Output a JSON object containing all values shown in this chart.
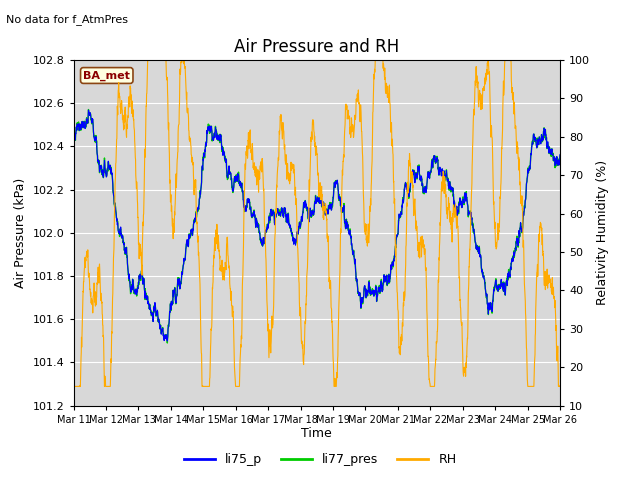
{
  "title": "Air Pressure and RH",
  "top_left_text": "No data for f_AtmPres",
  "box_label": "BA_met",
  "xlabel": "Time",
  "ylabel_left": "Air Pressure (kPa)",
  "ylabel_right": "Relativity Humidity (%)",
  "ylim_left": [
    101.2,
    102.8
  ],
  "ylim_right": [
    10,
    100
  ],
  "yticks_left": [
    101.2,
    101.4,
    101.6,
    101.8,
    102.0,
    102.2,
    102.4,
    102.6,
    102.8
  ],
  "yticks_right": [
    10,
    20,
    30,
    40,
    50,
    60,
    70,
    80,
    90,
    100
  ],
  "xtick_labels": [
    "Mar 11",
    "Mar 12",
    "Mar 13",
    "Mar 14",
    "Mar 15",
    "Mar 16",
    "Mar 17",
    "Mar 18",
    "Mar 19",
    "Mar 20",
    "Mar 21",
    "Mar 22",
    "Mar 23",
    "Mar 24",
    "Mar 25",
    "Mar 26"
  ],
  "color_li75": "#0000ff",
  "color_li77": "#00cc00",
  "color_rh": "#ffaa00",
  "bg_color": "#d8d8d8",
  "legend_entries": [
    "li75_p",
    "li77_pres",
    "RH"
  ],
  "title_fontsize": 12,
  "label_fontsize": 9,
  "tick_fontsize": 8
}
